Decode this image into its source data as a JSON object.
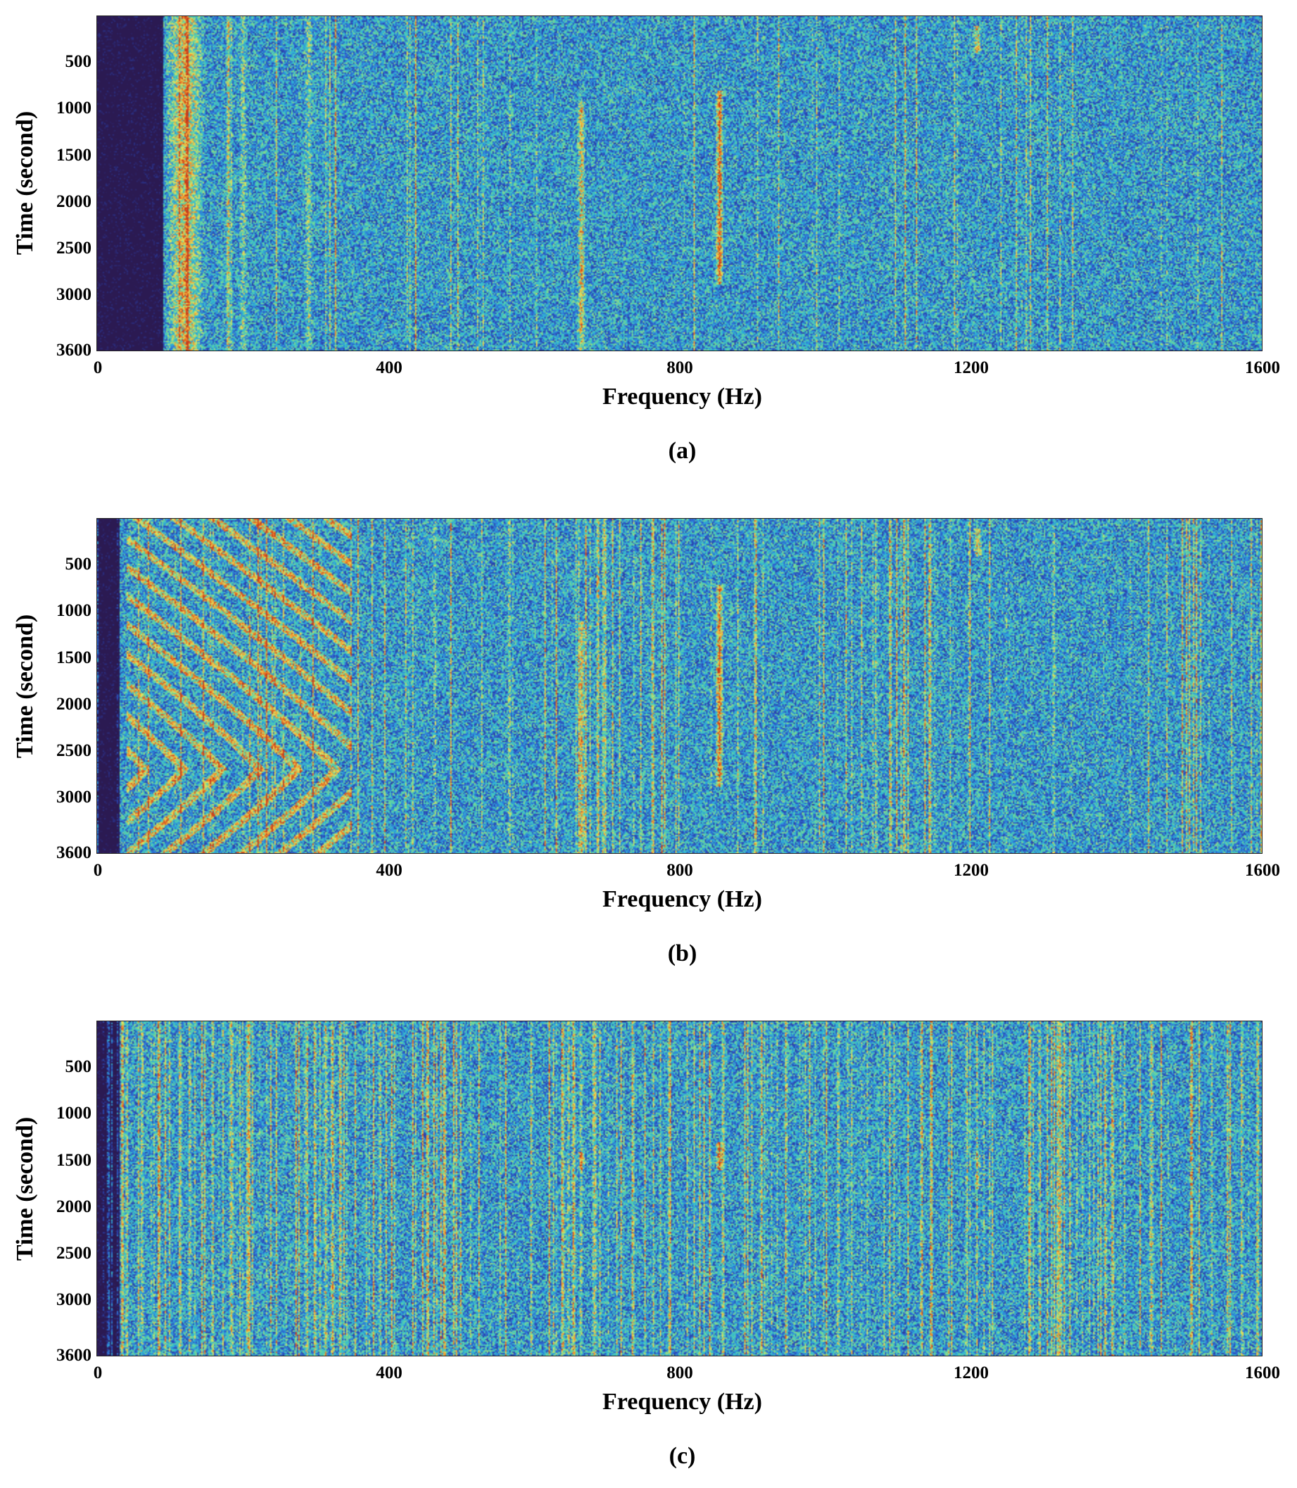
{
  "chart_data": [
    {
      "type": "heatmap",
      "panel_label": "(a)",
      "xlabel": "Frequency (Hz)",
      "ylabel": "Time (second)",
      "xlim": [
        0,
        1600
      ],
      "ylim": [
        0,
        3600
      ],
      "y_reversed": true,
      "x_ticks": [
        "0",
        "400",
        "800",
        "1200",
        "1600"
      ],
      "y_ticks": [
        "500",
        "1000",
        "1500",
        "2000",
        "2500",
        "3000",
        "3600"
      ],
      "colormap": [
        "#2b1a52",
        "#2a3fa8",
        "#2f6fd8",
        "#2fb7d6",
        "#62d4a0",
        "#e8e35a",
        "#f08a2a",
        "#c83a1c"
      ],
      "features": [
        {
          "kind": "low-frequency band",
          "freq_range": [
            0,
            90
          ],
          "level": "very low"
        },
        {
          "kind": "broadband line",
          "freq": 120,
          "level": "high"
        },
        {
          "kind": "line",
          "freq": 200,
          "level": "medium"
        },
        {
          "kind": "line",
          "freq": 290,
          "level": "medium"
        },
        {
          "kind": "tonal",
          "freq": 665,
          "time_range": [
            900,
            3600
          ],
          "level": "high"
        },
        {
          "kind": "tonal",
          "freq": 855,
          "time_range": [
            800,
            2900
          ],
          "level": "very high"
        },
        {
          "kind": "tonal",
          "freq": 1210,
          "time_range": [
            100,
            400
          ],
          "level": "high"
        }
      ]
    },
    {
      "type": "heatmap",
      "panel_label": "(b)",
      "xlabel": "Frequency (Hz)",
      "ylabel": "Time (second)",
      "xlim": [
        0,
        1600
      ],
      "ylim": [
        0,
        3600
      ],
      "y_reversed": true,
      "x_ticks": [
        "0",
        "400",
        "800",
        "1200",
        "1600"
      ],
      "y_ticks": [
        "500",
        "1000",
        "1500",
        "2000",
        "2500",
        "3000",
        "3600"
      ],
      "colormap": [
        "#2b1a52",
        "#2a3fa8",
        "#2f6fd8",
        "#2fb7d6",
        "#62d4a0",
        "#e8e35a",
        "#f08a2a",
        "#c83a1c"
      ],
      "features": [
        {
          "kind": "low-frequency band",
          "freq_range": [
            0,
            30
          ],
          "level": "very low"
        },
        {
          "kind": "interference striations",
          "freq_range": [
            40,
            350
          ],
          "level": "medium"
        },
        {
          "kind": "tonal",
          "freq": 665,
          "time_range": [
            1100,
            3600
          ],
          "level": "high"
        },
        {
          "kind": "tonal",
          "freq": 855,
          "time_range": [
            700,
            2900
          ],
          "level": "very high"
        },
        {
          "kind": "tonal",
          "freq": 1210,
          "time_range": [
            100,
            400
          ],
          "level": "high"
        }
      ]
    },
    {
      "type": "heatmap",
      "panel_label": "(c)",
      "xlabel": "Frequency (Hz)",
      "ylabel": "Time (second)",
      "xlim": [
        0,
        1600
      ],
      "ylim": [
        0,
        3600
      ],
      "y_reversed": true,
      "x_ticks": [
        "0",
        "400",
        "800",
        "1200",
        "1600"
      ],
      "y_ticks": [
        "500",
        "1000",
        "1500",
        "2000",
        "2500",
        "3000",
        "3600"
      ],
      "colormap": [
        "#2b1a52",
        "#2a3fa8",
        "#2f6fd8",
        "#2fb7d6",
        "#62d4a0",
        "#e8e35a",
        "#f08a2a",
        "#c83a1c"
      ],
      "features": [
        {
          "kind": "low-frequency band",
          "freq_range": [
            0,
            30
          ],
          "level": "very low"
        },
        {
          "kind": "dense vertical lines",
          "freq_range": [
            30,
            1600
          ],
          "level": "medium"
        },
        {
          "kind": "tonal",
          "freq": 665,
          "time_range": [
            1400,
            1600
          ],
          "level": "high"
        },
        {
          "kind": "tonal",
          "freq": 855,
          "time_range": [
            1300,
            1600
          ],
          "level": "very high"
        },
        {
          "kind": "tonal",
          "freq": 1210,
          "time_range": [
            1400,
            1800
          ],
          "level": "medium"
        }
      ]
    }
  ]
}
